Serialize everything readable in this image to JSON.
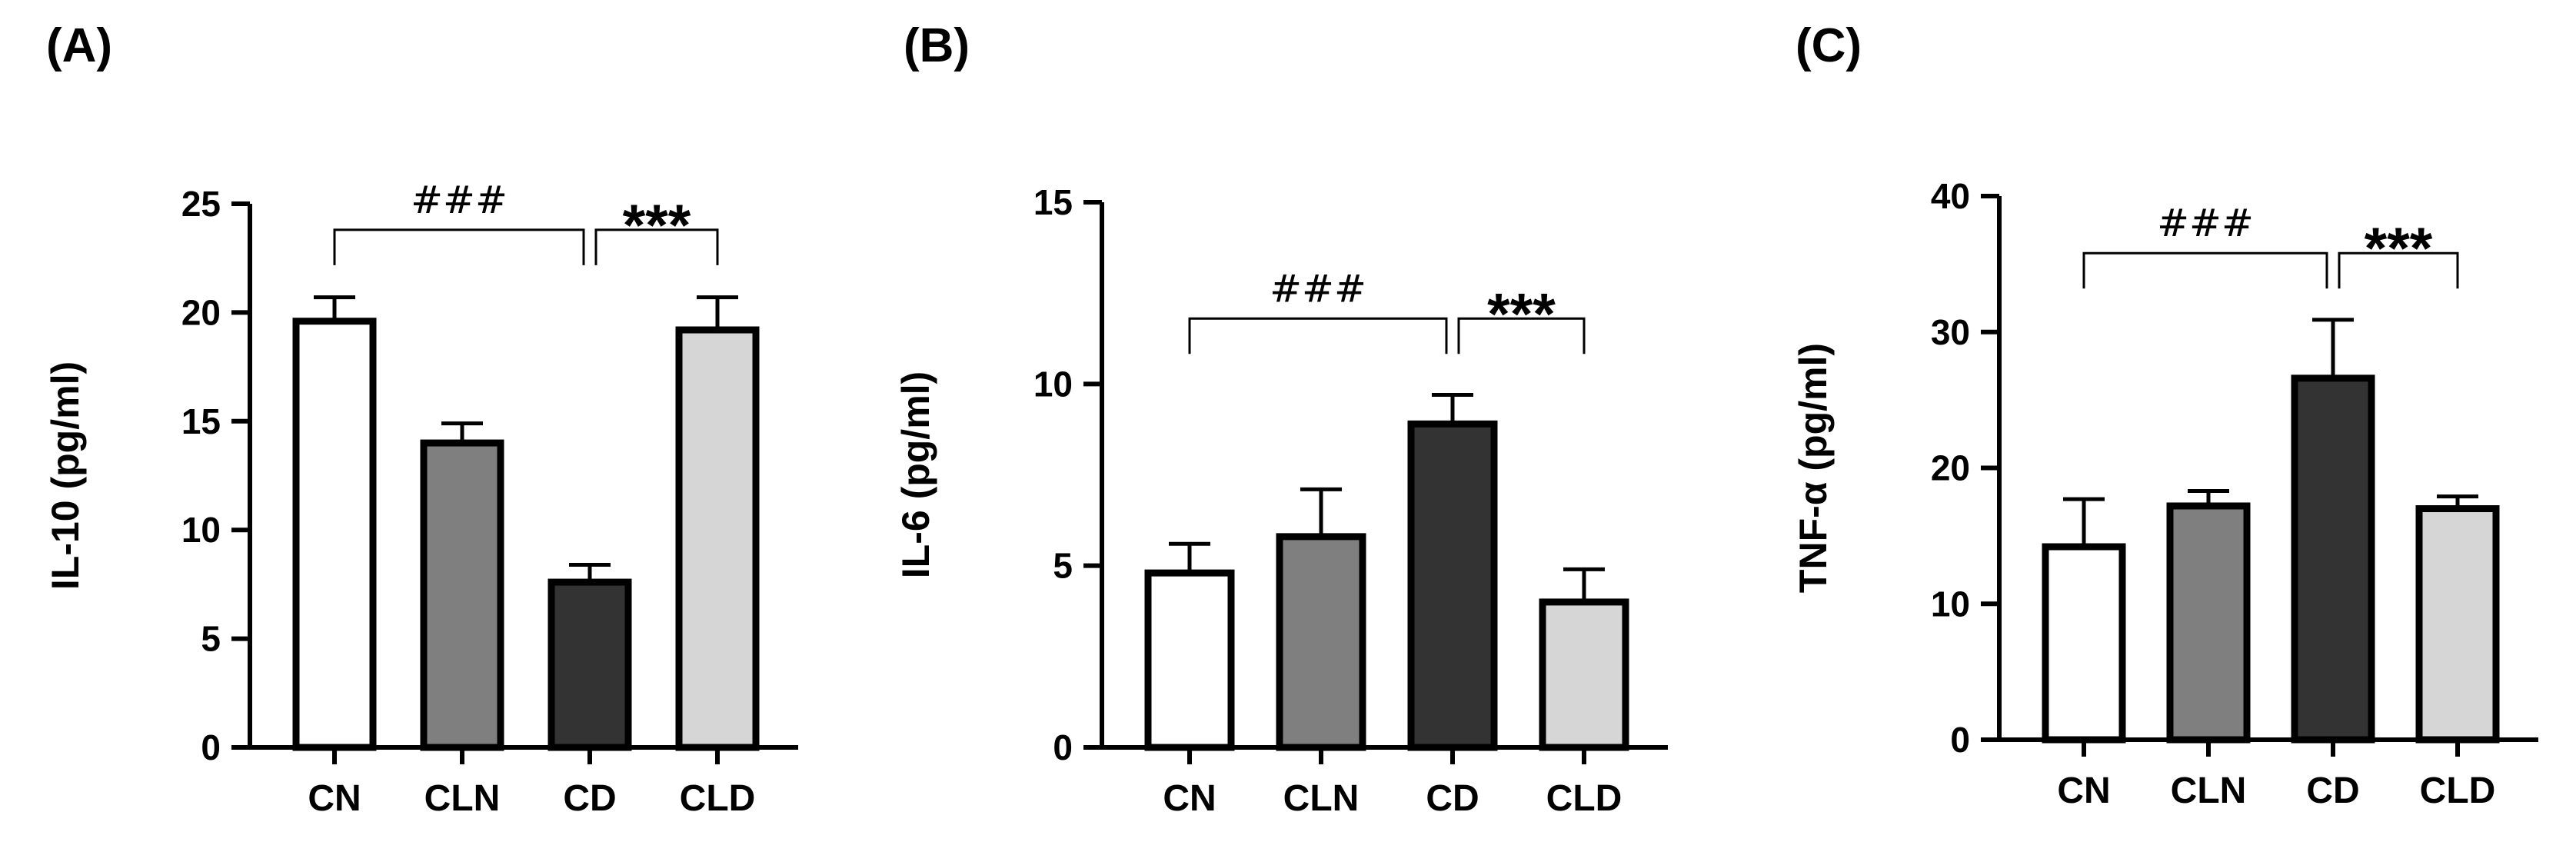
{
  "chart_data": [
    {
      "type": "bar",
      "panel_label": "(A)",
      "ylabel": "IL-10 (pg/ml)",
      "ylim": [
        0,
        25
      ],
      "yticks": [
        0,
        5,
        10,
        15,
        20,
        25
      ],
      "categories": [
        "CN",
        "CLN",
        "CD",
        "CLD"
      ],
      "values": [
        19.6,
        14.0,
        7.6,
        19.2
      ],
      "errors": [
        1.1,
        0.9,
        0.8,
        1.5
      ],
      "fills": [
        "#ffffff",
        "#7f7f7f",
        "#333333",
        "#d6d6d6"
      ],
      "annotations": [
        {
          "text": "###",
          "from": "CN",
          "to": "CD",
          "y": 23.8
        },
        {
          "text": "***",
          "from": "CD",
          "to": "CLD",
          "y": 23.8
        }
      ]
    },
    {
      "type": "bar",
      "panel_label": "(B)",
      "ylabel": "IL-6 (pg/ml)",
      "ylim": [
        0,
        15
      ],
      "yticks": [
        0,
        5,
        10,
        15
      ],
      "categories": [
        "CN",
        "CLN",
        "CD",
        "CLD"
      ],
      "values": [
        4.8,
        5.8,
        8.9,
        4.0
      ],
      "errors": [
        0.8,
        1.3,
        0.8,
        0.9
      ],
      "fills": [
        "#ffffff",
        "#7f7f7f",
        "#333333",
        "#d6d6d6"
      ],
      "annotations": [
        {
          "text": "###",
          "from": "CN",
          "to": "CD",
          "y": 11.8
        },
        {
          "text": "***",
          "from": "CD",
          "to": "CLD",
          "y": 11.8
        }
      ]
    },
    {
      "type": "bar",
      "panel_label": "(C)",
      "ylabel": "TNF-α (pg/ml)",
      "ylim": [
        0,
        40
      ],
      "yticks": [
        0,
        10,
        20,
        30,
        40
      ],
      "categories": [
        "CN",
        "CLN",
        "CD",
        "CLD"
      ],
      "values": [
        14.2,
        17.2,
        26.6,
        17.0
      ],
      "errors": [
        3.5,
        1.1,
        4.3,
        0.9
      ],
      "fills": [
        "#ffffff",
        "#7f7f7f",
        "#333333",
        "#d6d6d6"
      ],
      "annotations": [
        {
          "text": "###",
          "from": "CN",
          "to": "CD",
          "y": 35.8
        },
        {
          "text": "***",
          "from": "CD",
          "to": "CLD",
          "y": 35.8
        }
      ]
    }
  ]
}
